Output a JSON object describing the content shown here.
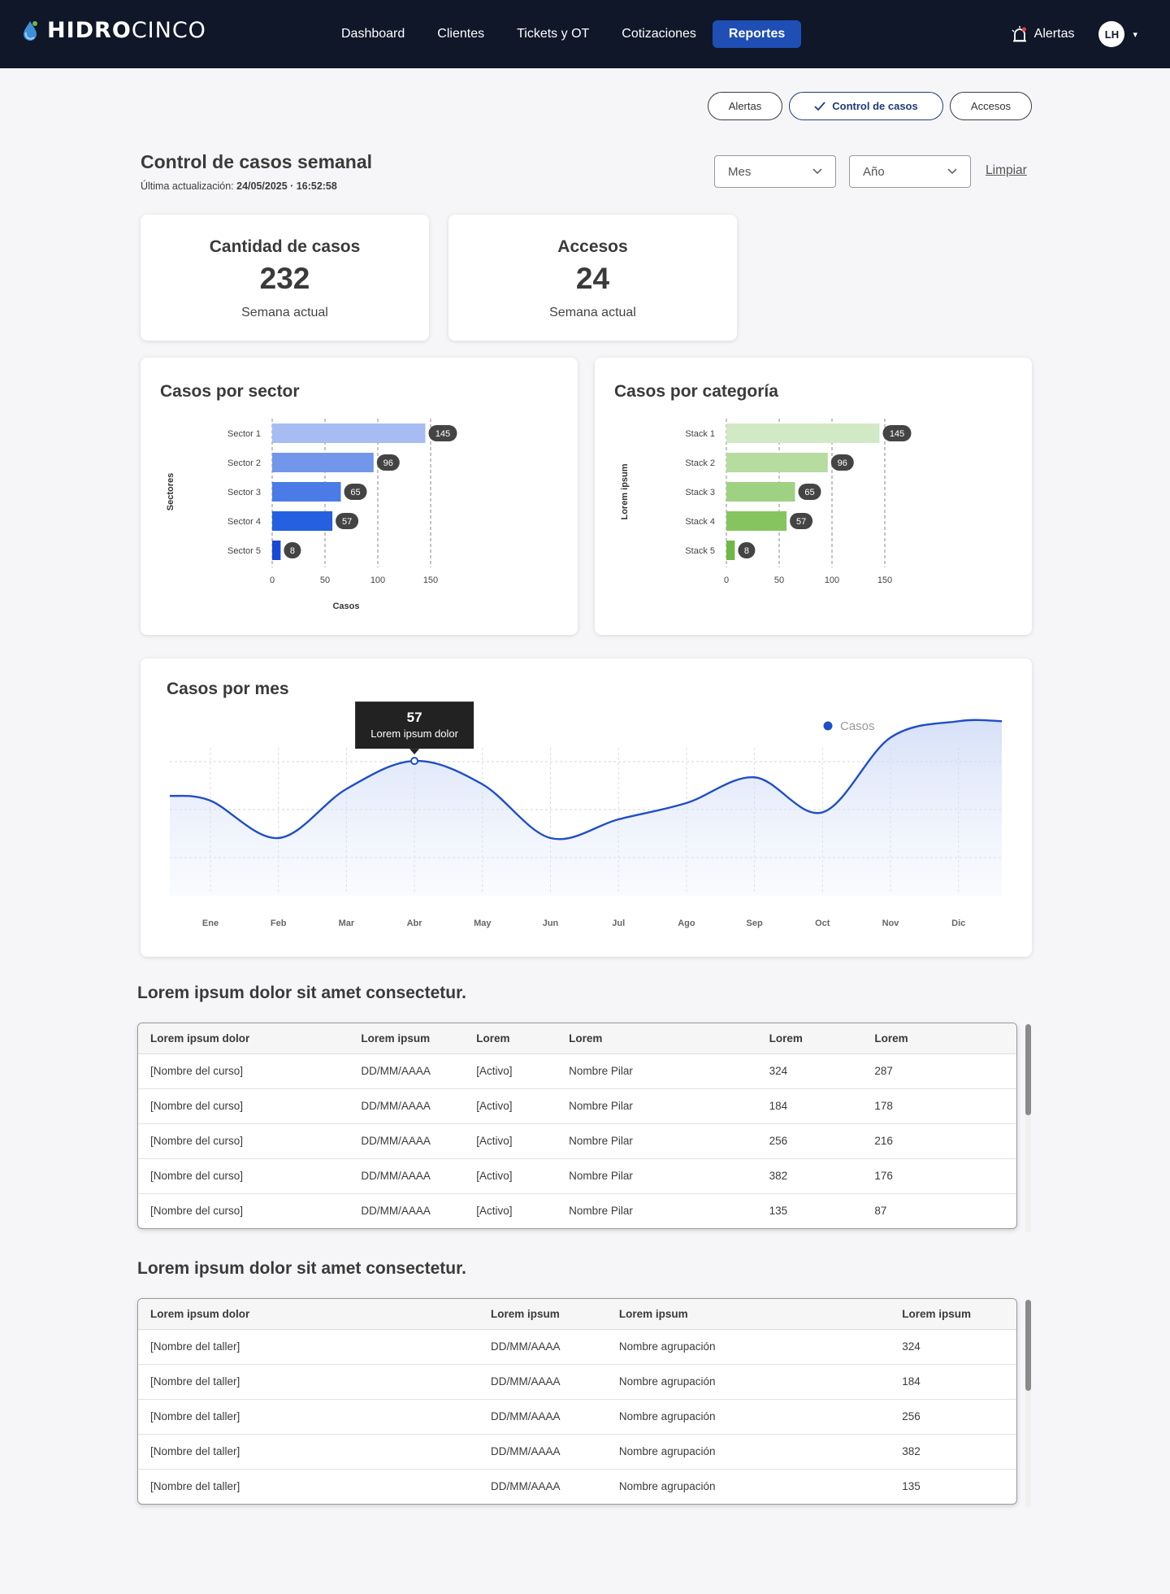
{
  "nav": {
    "brand_bold": "HIDRO",
    "brand_light": "CINCO",
    "links": [
      {
        "label": "Dashboard"
      },
      {
        "label": "Clientes"
      },
      {
        "label": "Tickets y OT"
      },
      {
        "label": "Cotizaciones"
      },
      {
        "label": "Reportes",
        "active": true
      }
    ],
    "alerts_label": "Alertas",
    "avatar_initials": "LH"
  },
  "pills": [
    {
      "label": "Alertas"
    },
    {
      "label": "Control de casos",
      "active": true
    },
    {
      "label": "Accesos"
    }
  ],
  "header": {
    "title": "Control de casos semanal",
    "updated_label": "Última actualización:",
    "updated_value": "24/05/2025 · 16:52:58",
    "month_placeholder": "Mes",
    "year_placeholder": "Año",
    "clear_label": "Limpiar"
  },
  "kpis": [
    {
      "title": "Cantidad de casos",
      "value": "232",
      "sub": "Semana actual"
    },
    {
      "title": "Accesos",
      "value": "24",
      "sub": "Semana actual"
    }
  ],
  "chart_data": [
    {
      "type": "bar",
      "orientation": "horizontal",
      "title": "Casos por sector",
      "xlabel": "Casos",
      "ylabel": "Sectores",
      "categories": [
        "Sector 1",
        "Sector 2",
        "Sector 3",
        "Sector 4",
        "Sector 5"
      ],
      "values": [
        145,
        96,
        65,
        57,
        8
      ],
      "colors": [
        "#a6bcf2",
        "#7297ea",
        "#4a7be6",
        "#2460e0",
        "#1849d6"
      ],
      "xticks": [
        0,
        50,
        100,
        150
      ],
      "xlim": [
        0,
        160
      ],
      "grid": "vertical-dashed"
    },
    {
      "type": "bar",
      "orientation": "horizontal",
      "title": "Casos por categoría",
      "xlabel": "",
      "ylabel": "Lorem ipsum",
      "categories": [
        "Stack 1",
        "Stack 2",
        "Stack 3",
        "Stack 4",
        "Stack 5"
      ],
      "values": [
        145,
        96,
        65,
        57,
        8
      ],
      "colors": [
        "#d2e9c5",
        "#b6dc9f",
        "#9fd182",
        "#86c460",
        "#6fb847"
      ],
      "xticks": [
        0,
        50,
        100,
        150
      ],
      "xlim": [
        0,
        160
      ],
      "grid": "vertical-dashed"
    },
    {
      "type": "area",
      "title": "Casos por mes",
      "legend": "top-right",
      "series": [
        {
          "name": "Casos",
          "color": "#1f4fc6",
          "values": [
            40,
            24,
            45,
            57,
            47,
            24,
            32,
            39,
            50,
            35,
            67,
            74
          ]
        }
      ],
      "categories": [
        "Ene",
        "Feb",
        "Mar",
        "Abr",
        "May",
        "Jun",
        "Jul",
        "Ago",
        "Sep",
        "Oct",
        "Nov",
        "Dic"
      ],
      "ylim": [
        0,
        80
      ],
      "tooltip": {
        "index": 3,
        "value": "57",
        "label": "Lorem ipsum dolor"
      }
    }
  ],
  "table1": {
    "title": "Lorem ipsum dolor sit amet consectetur.",
    "headers": [
      "Lorem ipsum dolor",
      "Lorem ipsum",
      "Lorem",
      "Lorem",
      "Lorem",
      "Lorem"
    ],
    "rows": [
      [
        "[Nombre del curso]",
        "DD/MM/AAAA",
        "[Activo]",
        "Nombre Pilar",
        "324",
        "287"
      ],
      [
        "[Nombre del curso]",
        "DD/MM/AAAA",
        "[Activo]",
        "Nombre Pilar",
        "184",
        "178"
      ],
      [
        "[Nombre del curso]",
        "DD/MM/AAAA",
        "[Activo]",
        "Nombre Pilar",
        "256",
        "216"
      ],
      [
        "[Nombre del curso]",
        "DD/MM/AAAA",
        "[Activo]",
        "Nombre Pilar",
        "382",
        "176"
      ],
      [
        "[Nombre del curso]",
        "DD/MM/AAAA",
        "[Activo]",
        "Nombre Pilar",
        "135",
        "87"
      ]
    ]
  },
  "table2": {
    "title": "Lorem ipsum dolor sit amet consectetur.",
    "headers": [
      "Lorem ipsum dolor",
      "Lorem ipsum",
      "Lorem ipsum",
      "Lorem ipsum"
    ],
    "rows": [
      [
        "[Nombre del taller]",
        "DD/MM/AAAA",
        "Nombre agrupación",
        "324"
      ],
      [
        "[Nombre del taller]",
        "DD/MM/AAAA",
        "Nombre agrupación",
        "184"
      ],
      [
        "[Nombre del taller]",
        "DD/MM/AAAA",
        "Nombre agrupación",
        "256"
      ],
      [
        "[Nombre del taller]",
        "DD/MM/AAAA",
        "Nombre agrupación",
        "382"
      ],
      [
        "[Nombre del taller]",
        "DD/MM/AAAA",
        "Nombre agrupación",
        "135"
      ]
    ]
  }
}
